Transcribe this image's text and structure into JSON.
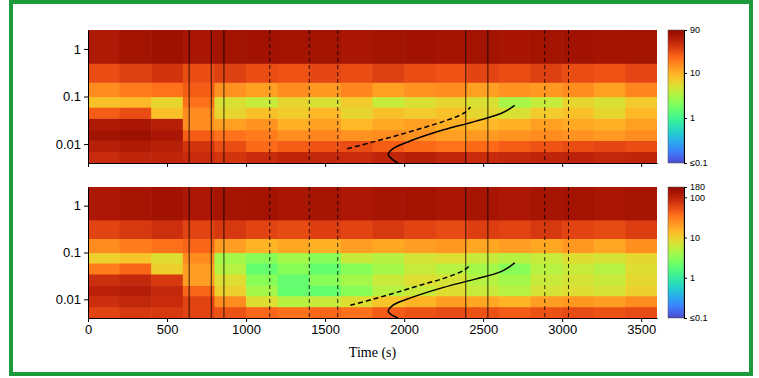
{
  "chart_data": [
    {
      "type": "heatmap",
      "xlim": [
        0,
        3600
      ],
      "xticks": [
        0,
        500,
        1000,
        1500,
        2000,
        2500,
        3000,
        3500
      ],
      "ylim": [
        0.004,
        2.5
      ],
      "yticks": [
        0.01,
        0.1,
        1
      ],
      "log": "y",
      "tick_labels": "y",
      "x": [
        0,
        200,
        400,
        600,
        800,
        1000,
        1200,
        1400,
        1600,
        1800,
        2000,
        2200,
        2400,
        2600,
        2800,
        3000,
        3200,
        3400,
        3600
      ],
      "y": [
        0.004,
        0.007,
        0.012,
        0.02,
        0.035,
        0.06,
        0.1,
        0.2,
        0.5,
        2.5
      ],
      "cells": [
        [
          45,
          50,
          50,
          45,
          40,
          45,
          50,
          48,
          45,
          50,
          55,
          50,
          45,
          48,
          50,
          52,
          48,
          50
        ],
        [
          55,
          60,
          55,
          40,
          30,
          22,
          25,
          28,
          30,
          25,
          22,
          20,
          22,
          25,
          28,
          30,
          32,
          30
        ],
        [
          70,
          75,
          65,
          25,
          20,
          18,
          15,
          16,
          14,
          15,
          14,
          12,
          13,
          14,
          15,
          14,
          13,
          15
        ],
        [
          60,
          65,
          55,
          15,
          12,
          14,
          10,
          12,
          9,
          11,
          12,
          10,
          9,
          10,
          12,
          11,
          10,
          12
        ],
        [
          25,
          30,
          8,
          15,
          6,
          8,
          7,
          9,
          6,
          8,
          7,
          8,
          6,
          5,
          7,
          8,
          6,
          9
        ],
        [
          8,
          9,
          6,
          20,
          5,
          4,
          6,
          5,
          7,
          4,
          5,
          6,
          5,
          3,
          4,
          6,
          5,
          7
        ],
        [
          15,
          18,
          20,
          25,
          14,
          12,
          15,
          13,
          16,
          12,
          14,
          15,
          12,
          14,
          13,
          15,
          12,
          16
        ],
        [
          30,
          35,
          40,
          30,
          35,
          30,
          28,
          32,
          30,
          35,
          30,
          28,
          33,
          30,
          35,
          30,
          28,
          32
        ],
        [
          60,
          70,
          75,
          65,
          70,
          72,
          68,
          70,
          65,
          70,
          72,
          68,
          70,
          66,
          70,
          72,
          68,
          70
        ]
      ],
      "colorbar": {
        "range": [
          0.1,
          90
        ],
        "log": true,
        "ticks": [
          {
            "value": 0.1,
            "label": "≤0.1"
          },
          1,
          10,
          90
        ]
      },
      "vlines": [
        {
          "value": 640,
          "line_style": "solid"
        },
        {
          "value": 780,
          "line_style": "solid"
        },
        {
          "value": 860,
          "line_style": "solid"
        },
        {
          "value": 1150,
          "line_style": "dashed"
        },
        {
          "value": 1400,
          "line_style": "dashed"
        },
        {
          "value": 1580,
          "line_style": "dashed"
        },
        {
          "value": 2390,
          "line_style": "solid"
        },
        {
          "value": 2530,
          "line_style": "solid"
        },
        {
          "value": 2890,
          "line_style": "dashed"
        },
        {
          "value": 3040,
          "line_style": "dashed"
        }
      ],
      "series": [
        {
          "type": "line",
          "line_style": "solid",
          "color": "#000000",
          "x": [
            1960,
            1900,
            1930,
            2050,
            2250,
            2450,
            2620,
            2700
          ],
          "values": [
            0.004,
            0.006,
            0.008,
            0.012,
            0.02,
            0.03,
            0.045,
            0.065
          ]
        },
        {
          "type": "line",
          "line_style": "dashed",
          "color": "#000000",
          "x": [
            1640,
            1800,
            1950,
            2100,
            2250,
            2380,
            2420
          ],
          "values": [
            0.008,
            0.011,
            0.015,
            0.021,
            0.03,
            0.045,
            0.06
          ]
        }
      ]
    },
    {
      "type": "heatmap",
      "xlabel": "Time (s)",
      "xlim": [
        0,
        3600
      ],
      "xticks": [
        0,
        500,
        1000,
        1500,
        2000,
        2500,
        3000,
        3500
      ],
      "ylim": [
        0.004,
        2.5
      ],
      "yticks": [
        0.01,
        0.1,
        1
      ],
      "log": "y",
      "x": [
        0,
        200,
        400,
        600,
        800,
        1000,
        1200,
        1400,
        1600,
        1800,
        2000,
        2200,
        2400,
        2600,
        2800,
        3000,
        3200,
        3400,
        3600
      ],
      "y": [
        0.004,
        0.007,
        0.012,
        0.02,
        0.035,
        0.06,
        0.1,
        0.2,
        0.5,
        2.5
      ],
      "cells": [
        [
          60,
          70,
          70,
          60,
          50,
          40,
          35,
          40,
          35,
          45,
          50,
          55,
          50,
          45,
          50,
          55,
          50,
          55
        ],
        [
          80,
          90,
          85,
          60,
          25,
          8,
          5,
          6,
          8,
          12,
          15,
          20,
          18,
          15,
          20,
          22,
          20,
          25
        ],
        [
          100,
          110,
          90,
          40,
          10,
          4,
          2,
          2,
          3,
          5,
          6,
          8,
          6,
          5,
          7,
          8,
          7,
          10
        ],
        [
          80,
          90,
          70,
          20,
          8,
          3,
          2,
          3,
          4,
          6,
          8,
          7,
          5,
          4,
          6,
          7,
          6,
          9
        ],
        [
          30,
          40,
          10,
          20,
          5,
          2,
          3,
          2,
          3,
          4,
          6,
          5,
          4,
          3,
          5,
          6,
          5,
          8
        ],
        [
          10,
          12,
          8,
          25,
          4,
          3,
          4,
          3,
          6,
          5,
          7,
          8,
          6,
          5,
          6,
          8,
          7,
          9
        ],
        [
          25,
          30,
          35,
          40,
          20,
          15,
          18,
          16,
          20,
          18,
          20,
          22,
          18,
          20,
          18,
          22,
          18,
          24
        ],
        [
          60,
          70,
          80,
          60,
          70,
          60,
          55,
          65,
          60,
          70,
          60,
          55,
          65,
          60,
          70,
          60,
          55,
          65
        ],
        [
          120,
          130,
          140,
          120,
          130,
          135,
          125,
          130,
          120,
          130,
          135,
          125,
          130,
          120,
          130,
          135,
          125,
          130
        ]
      ],
      "colorbar": {
        "range": [
          0.1,
          180
        ],
        "log": true,
        "ticks": [
          {
            "value": 0.1,
            "label": "≤0.1"
          },
          1,
          10,
          100,
          180
        ]
      },
      "vlines": [
        {
          "value": 640,
          "line_style": "solid"
        },
        {
          "value": 780,
          "line_style": "solid"
        },
        {
          "value": 860,
          "line_style": "solid"
        },
        {
          "value": 1150,
          "line_style": "dashed"
        },
        {
          "value": 1400,
          "line_style": "dashed"
        },
        {
          "value": 1580,
          "line_style": "dashed"
        },
        {
          "value": 2390,
          "line_style": "solid"
        },
        {
          "value": 2530,
          "line_style": "solid"
        },
        {
          "value": 2890,
          "line_style": "dashed"
        },
        {
          "value": 3040,
          "line_style": "dashed"
        }
      ],
      "series": [
        {
          "type": "line",
          "line_style": "solid",
          "color": "#000000",
          "x": [
            1960,
            1900,
            1930,
            2050,
            2250,
            2450,
            2620,
            2700
          ],
          "values": [
            0.004,
            0.0055,
            0.0075,
            0.011,
            0.018,
            0.027,
            0.04,
            0.06
          ]
        },
        {
          "type": "line",
          "line_style": "dashed",
          "color": "#000000",
          "x": [
            1660,
            1800,
            1950,
            2100,
            2250,
            2380,
            2420
          ],
          "values": [
            0.0075,
            0.01,
            0.014,
            0.02,
            0.028,
            0.042,
            0.055
          ]
        }
      ]
    }
  ]
}
